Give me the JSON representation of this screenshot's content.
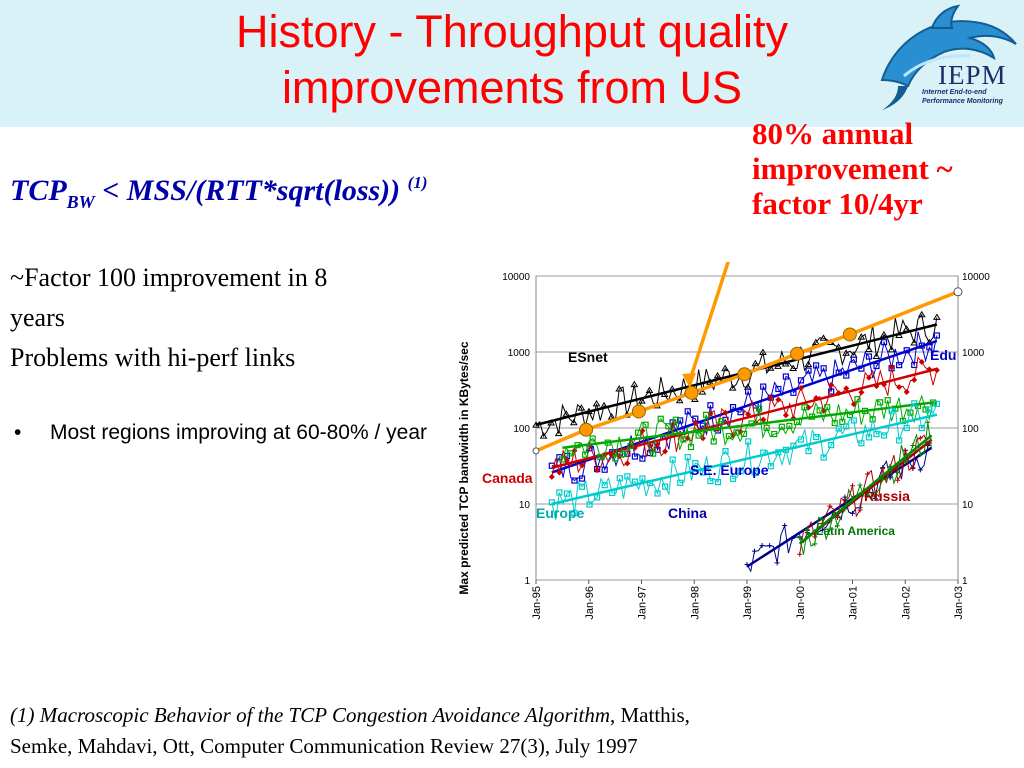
{
  "slide": {
    "title_line1": "History - Throughput quality",
    "title_line2": "improvements from US",
    "logo_text": "IEPM",
    "logo_sub1": "Internet End-to-end",
    "logo_sub2": "Performance Monitoring",
    "annotation": [
      "80% annual",
      "improvement ~",
      "factor 10/4yr"
    ],
    "formula_main": "TCP",
    "formula_sub": "BW",
    "formula_rest": " < MSS/(RTT*sqrt(loss))",
    "formula_sup": "(1)",
    "body_lines": [
      "~Factor 100 improvement in 8",
      "years",
      "Problems with hi-perf links"
    ],
    "bullet_symbol": "•",
    "bullet": "Most regions improving at 60-80% / year",
    "ref_italic": "(1) Macroscopic Behavior of the TCP Congestion Avoidance Algorithm",
    "ref_rest": ", Matthis,",
    "ref_line2": "Semke, Mahdavi, Ott, Computer Communication Review 27(3), July 1997",
    "colors": {
      "title": "#ff0000",
      "formula": "#0000aa",
      "header_band": "#d9f2f7"
    }
  },
  "chart_data": {
    "type": "line",
    "ylabel": "Max predicted TCP bandwidth in KBytes/sec",
    "xlabel": "",
    "y_scale": "log",
    "ylim": [
      1,
      10000
    ],
    "y_ticks": [
      "1",
      "10",
      "100",
      "1000",
      "10000"
    ],
    "x_ticks": [
      "Jan-95",
      "Jan-96",
      "Jan-97",
      "Jan-98",
      "Jan-99",
      "Jan-00",
      "Jan-01",
      "Jan-02",
      "Jan-03"
    ],
    "grid": "horizontal",
    "series": [
      {
        "name": "ESnet",
        "color": "#000000",
        "trend": [
          [
            1995.0,
            110
          ],
          [
            2002.6,
            2300
          ]
        ]
      },
      {
        "name": "Edu",
        "color": "#0000cc",
        "trend": [
          [
            1995.3,
            26
          ],
          [
            2002.6,
            1400
          ]
        ]
      },
      {
        "name": "Canada",
        "color": "#cc0000",
        "trend": [
          [
            1995.3,
            30
          ],
          [
            2002.6,
            600
          ]
        ]
      },
      {
        "name": "S.E. Europe",
        "color": "#00aa00",
        "trend": [
          [
            1995.5,
            55
          ],
          [
            2002.6,
            220
          ]
        ]
      },
      {
        "name": "Europe",
        "color": "#00cccc",
        "trend": [
          [
            1995.3,
            10
          ],
          [
            2002.6,
            150
          ]
        ]
      },
      {
        "name": "China",
        "color": "#000088",
        "trend": [
          [
            1999.0,
            1.5
          ],
          [
            2002.5,
            55
          ]
        ]
      },
      {
        "name": "Russia",
        "color": "#aa0000",
        "trend": [
          [
            2000.0,
            3
          ],
          [
            2002.5,
            70
          ]
        ]
      },
      {
        "name": "Latin America",
        "color": "#008800",
        "trend": [
          [
            2000.0,
            3
          ],
          [
            2002.5,
            80
          ]
        ]
      }
    ],
    "annotation_line": {
      "color": "#ff9900",
      "points": [
        [
          1995.0,
          50
        ],
        [
          1995.95,
          95
        ],
        [
          1996.95,
          165
        ],
        [
          1997.95,
          290
        ],
        [
          1998.95,
          510
        ],
        [
          1999.95,
          950
        ],
        [
          2000.95,
          1700
        ],
        [
          2003.0,
          6200
        ]
      ]
    }
  }
}
